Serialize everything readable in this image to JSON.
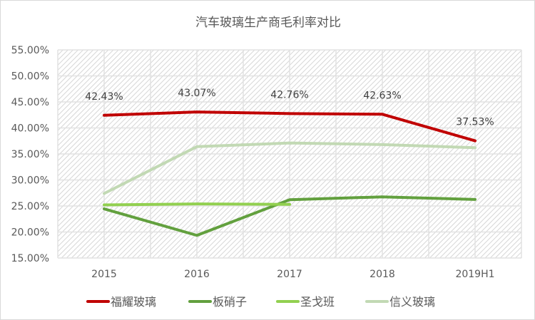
{
  "chart_data": {
    "type": "line",
    "title": "汽车玻璃生产商毛利率对比",
    "categories": [
      "2015",
      "2016",
      "2017",
      "2018",
      "2019H1"
    ],
    "ylim": [
      0.15,
      0.55
    ],
    "yticks": [
      "15.00%",
      "20.00%",
      "25.00%",
      "30.00%",
      "35.00%",
      "40.00%",
      "45.00%",
      "50.00%",
      "55.00%"
    ],
    "grid": true,
    "legend_position": "bottom",
    "series": [
      {
        "name": "福耀玻璃",
        "color": "#c00000",
        "values": [
          0.4243,
          0.4307,
          0.4276,
          0.4263,
          0.3753
        ],
        "labels": [
          "42.43%",
          "43.07%",
          "42.76%",
          "42.63%",
          "37.53%"
        ]
      },
      {
        "name": "板硝子",
        "color": "#62a03e",
        "values": [
          0.2445,
          0.1935,
          0.262,
          0.2675,
          0.2625
        ]
      },
      {
        "name": "圣戈班",
        "color": "#92d050",
        "values": [
          0.252,
          0.254,
          0.253,
          null,
          null
        ]
      },
      {
        "name": "信义玻璃",
        "color": "#c2d9b4",
        "values": [
          0.274,
          0.364,
          0.371,
          0.368,
          0.362
        ]
      }
    ]
  }
}
